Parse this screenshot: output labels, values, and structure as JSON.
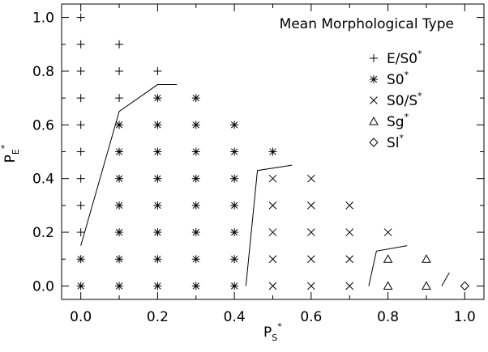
{
  "chart_data": {
    "type": "scatter",
    "title": "Mean Morphological Type",
    "xlabel": {
      "main": "P",
      "sub": "S",
      "sup": "*"
    },
    "ylabel": {
      "main": "P",
      "sub": "E",
      "sup": "*"
    },
    "xlim": [
      -0.05,
      1.05
    ],
    "ylim": [
      -0.05,
      1.05
    ],
    "xticks": [
      "0.0",
      "0.2",
      "0.4",
      "0.6",
      "0.8",
      "1.0"
    ],
    "xtick_values": [
      0.0,
      0.2,
      0.4,
      0.6,
      0.8,
      1.0
    ],
    "yticks": [
      "0.0",
      "0.2",
      "0.4",
      "0.6",
      "0.8",
      "1.0"
    ],
    "ytick_values": [
      0.0,
      0.2,
      0.4,
      0.6,
      0.8,
      1.0
    ],
    "legend_position": "top-right",
    "legend": [
      {
        "symbol": "plus",
        "label": "E/S0",
        "sup": "*"
      },
      {
        "symbol": "asterisk",
        "label": "S0",
        "sup": "*"
      },
      {
        "symbol": "cross",
        "label": "S0/S",
        "sup": "*"
      },
      {
        "symbol": "triangle",
        "label": "Sg",
        "sup": "*"
      },
      {
        "symbol": "diamond",
        "label": "Sl",
        "sup": "*"
      }
    ],
    "series": [
      {
        "symbol": "plus",
        "points": [
          [
            0.0,
            1.0
          ],
          [
            0.0,
            0.9
          ],
          [
            0.0,
            0.8
          ],
          [
            0.0,
            0.7
          ],
          [
            0.0,
            0.6
          ],
          [
            0.0,
            0.5
          ],
          [
            0.0,
            0.4
          ],
          [
            0.0,
            0.3
          ],
          [
            0.0,
            0.2
          ],
          [
            0.1,
            0.9
          ],
          [
            0.1,
            0.8
          ],
          [
            0.1,
            0.7
          ],
          [
            0.2,
            0.8
          ]
        ]
      },
      {
        "symbol": "asterisk",
        "points": [
          [
            0.0,
            0.1
          ],
          [
            0.0,
            0.0
          ],
          [
            0.1,
            0.6
          ],
          [
            0.1,
            0.5
          ],
          [
            0.1,
            0.4
          ],
          [
            0.1,
            0.3
          ],
          [
            0.1,
            0.2
          ],
          [
            0.1,
            0.1
          ],
          [
            0.1,
            0.0
          ],
          [
            0.2,
            0.7
          ],
          [
            0.2,
            0.6
          ],
          [
            0.2,
            0.5
          ],
          [
            0.2,
            0.4
          ],
          [
            0.2,
            0.3
          ],
          [
            0.2,
            0.2
          ],
          [
            0.2,
            0.1
          ],
          [
            0.2,
            0.0
          ],
          [
            0.3,
            0.7
          ],
          [
            0.3,
            0.6
          ],
          [
            0.3,
            0.5
          ],
          [
            0.3,
            0.4
          ],
          [
            0.3,
            0.3
          ],
          [
            0.3,
            0.2
          ],
          [
            0.3,
            0.1
          ],
          [
            0.3,
            0.0
          ],
          [
            0.4,
            0.6
          ],
          [
            0.4,
            0.5
          ],
          [
            0.4,
            0.4
          ],
          [
            0.4,
            0.3
          ],
          [
            0.4,
            0.2
          ],
          [
            0.4,
            0.1
          ],
          [
            0.4,
            0.0
          ],
          [
            0.5,
            0.5
          ]
        ]
      },
      {
        "symbol": "cross",
        "points": [
          [
            0.5,
            0.4
          ],
          [
            0.5,
            0.3
          ],
          [
            0.5,
            0.2
          ],
          [
            0.5,
            0.1
          ],
          [
            0.5,
            0.0
          ],
          [
            0.6,
            0.4
          ],
          [
            0.6,
            0.3
          ],
          [
            0.6,
            0.2
          ],
          [
            0.6,
            0.1
          ],
          [
            0.6,
            0.0
          ],
          [
            0.7,
            0.3
          ],
          [
            0.7,
            0.2
          ],
          [
            0.7,
            0.1
          ],
          [
            0.7,
            0.0
          ],
          [
            0.8,
            0.2
          ]
        ]
      },
      {
        "symbol": "triangle",
        "points": [
          [
            0.8,
            0.1
          ],
          [
            0.8,
            0.0
          ],
          [
            0.9,
            0.1
          ],
          [
            0.9,
            0.0
          ]
        ]
      },
      {
        "symbol": "diamond",
        "points": [
          [
            1.0,
            0.0
          ]
        ]
      }
    ],
    "boundaries": [
      [
        [
          0.0,
          0.15
        ],
        [
          0.1,
          0.65
        ],
        [
          0.2,
          0.75
        ],
        [
          0.25,
          0.75
        ]
      ],
      [
        [
          0.43,
          0.0
        ],
        [
          0.46,
          0.43
        ],
        [
          0.55,
          0.45
        ]
      ],
      [
        [
          0.75,
          0.0
        ],
        [
          0.77,
          0.13
        ],
        [
          0.85,
          0.15
        ]
      ],
      [
        [
          0.94,
          0.0
        ],
        [
          0.96,
          0.05
        ]
      ]
    ]
  }
}
